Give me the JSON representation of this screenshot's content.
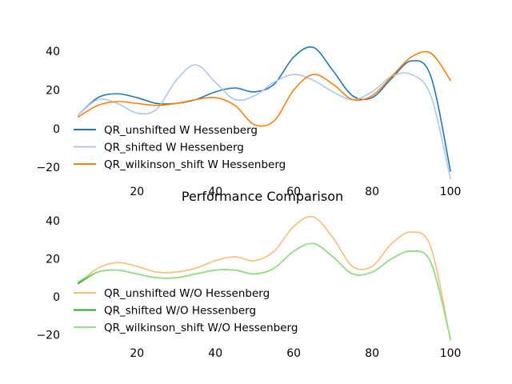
{
  "chart_data": [
    {
      "type": "line",
      "title": "",
      "xlabel": "",
      "ylabel": "",
      "xlim": [
        3,
        101
      ],
      "ylim": [
        -27,
        45
      ],
      "xticks": [
        20,
        40,
        60,
        80,
        100
      ],
      "yticks": [
        40,
        20,
        0,
        -20
      ],
      "grid": false,
      "legend_position": "lower-left",
      "x": [
        5,
        10,
        15,
        20,
        25,
        30,
        35,
        40,
        45,
        50,
        55,
        60,
        65,
        70,
        75,
        80,
        85,
        90,
        95,
        100
      ],
      "series": [
        {
          "name": "QR_unshifted W Hessenberg",
          "color": "#1f77b4",
          "values": [
            7,
            16,
            18,
            16,
            13,
            13,
            15,
            19,
            21,
            19,
            23,
            37,
            42,
            30,
            17,
            16,
            26,
            35,
            27,
            -22
          ]
        },
        {
          "name": "QR_shifted W Hessenberg",
          "color": "#aec7e8",
          "values": [
            7,
            15,
            13,
            8,
            10,
            25,
            33,
            24,
            15,
            17,
            24,
            28,
            25,
            19,
            15,
            19,
            27,
            28,
            17,
            -26
          ]
        },
        {
          "name": "QR_wilkinson_shift W Hessenberg",
          "color": "#ff7f0e",
          "values": [
            6,
            12,
            14,
            13,
            12,
            13,
            15,
            16,
            12,
            2,
            4,
            20,
            28,
            23,
            15,
            17,
            27,
            37,
            39,
            25
          ]
        }
      ]
    },
    {
      "type": "line",
      "title": "Performance Comparison",
      "xlabel": "",
      "ylabel": "",
      "xlim": [
        3,
        101
      ],
      "ylim": [
        -24,
        45
      ],
      "xticks": [
        20,
        40,
        60,
        80,
        100
      ],
      "yticks": [
        40,
        20,
        0,
        -20
      ],
      "grid": false,
      "legend_position": "lower-left",
      "x": [
        5,
        10,
        15,
        20,
        25,
        30,
        35,
        40,
        45,
        50,
        55,
        60,
        65,
        70,
        75,
        80,
        85,
        90,
        95,
        100
      ],
      "series": [
        {
          "name": "QR_unshifted W/O Hessenberg",
          "color": "#ffbb78",
          "values": [
            7,
            15,
            18,
            16,
            13,
            13,
            15,
            19,
            21,
            19,
            24,
            37,
            42,
            31,
            16,
            16,
            28,
            34,
            26,
            -23
          ]
        },
        {
          "name": "QR_shifted W/O Hessenberg",
          "color": "#2ca02c",
          "values": [
            7,
            13,
            14,
            12,
            10,
            10,
            12,
            14,
            14,
            12,
            15,
            24,
            28,
            21,
            12,
            13,
            20,
            24,
            18,
            -22
          ]
        },
        {
          "name": "QR_wilkinson_shift W/O Hessenberg",
          "color": "#98df8a",
          "values": [
            8,
            13,
            14,
            12,
            10,
            10,
            12,
            14,
            14,
            12,
            15,
            24,
            28,
            21,
            12,
            13,
            20,
            24,
            18,
            -22
          ]
        }
      ]
    }
  ]
}
